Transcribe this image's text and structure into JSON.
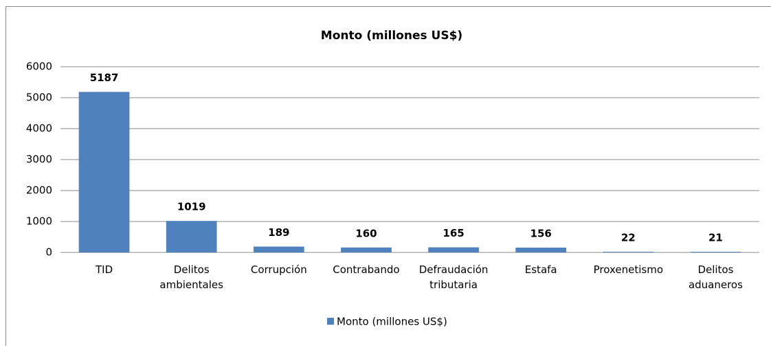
{
  "chart_data": {
    "type": "bar",
    "title": "Monto (millones US$)",
    "categories": [
      "TID",
      "Delitos ambientales",
      "Corrupción",
      "Contrabando",
      "Defraudación tributaria",
      "Estafa",
      "Proxenetismo",
      "Delitos aduaneros"
    ],
    "series": [
      {
        "name": "Monto (millones US$)",
        "color": "#4f81bd",
        "values": [
          5187,
          1019,
          189,
          160,
          165,
          156,
          22,
          21
        ]
      }
    ],
    "ylim": [
      0,
      6000
    ],
    "yticks": [
      0,
      1000,
      2000,
      3000,
      4000,
      5000,
      6000
    ],
    "grid": true,
    "legend": "bottom"
  }
}
